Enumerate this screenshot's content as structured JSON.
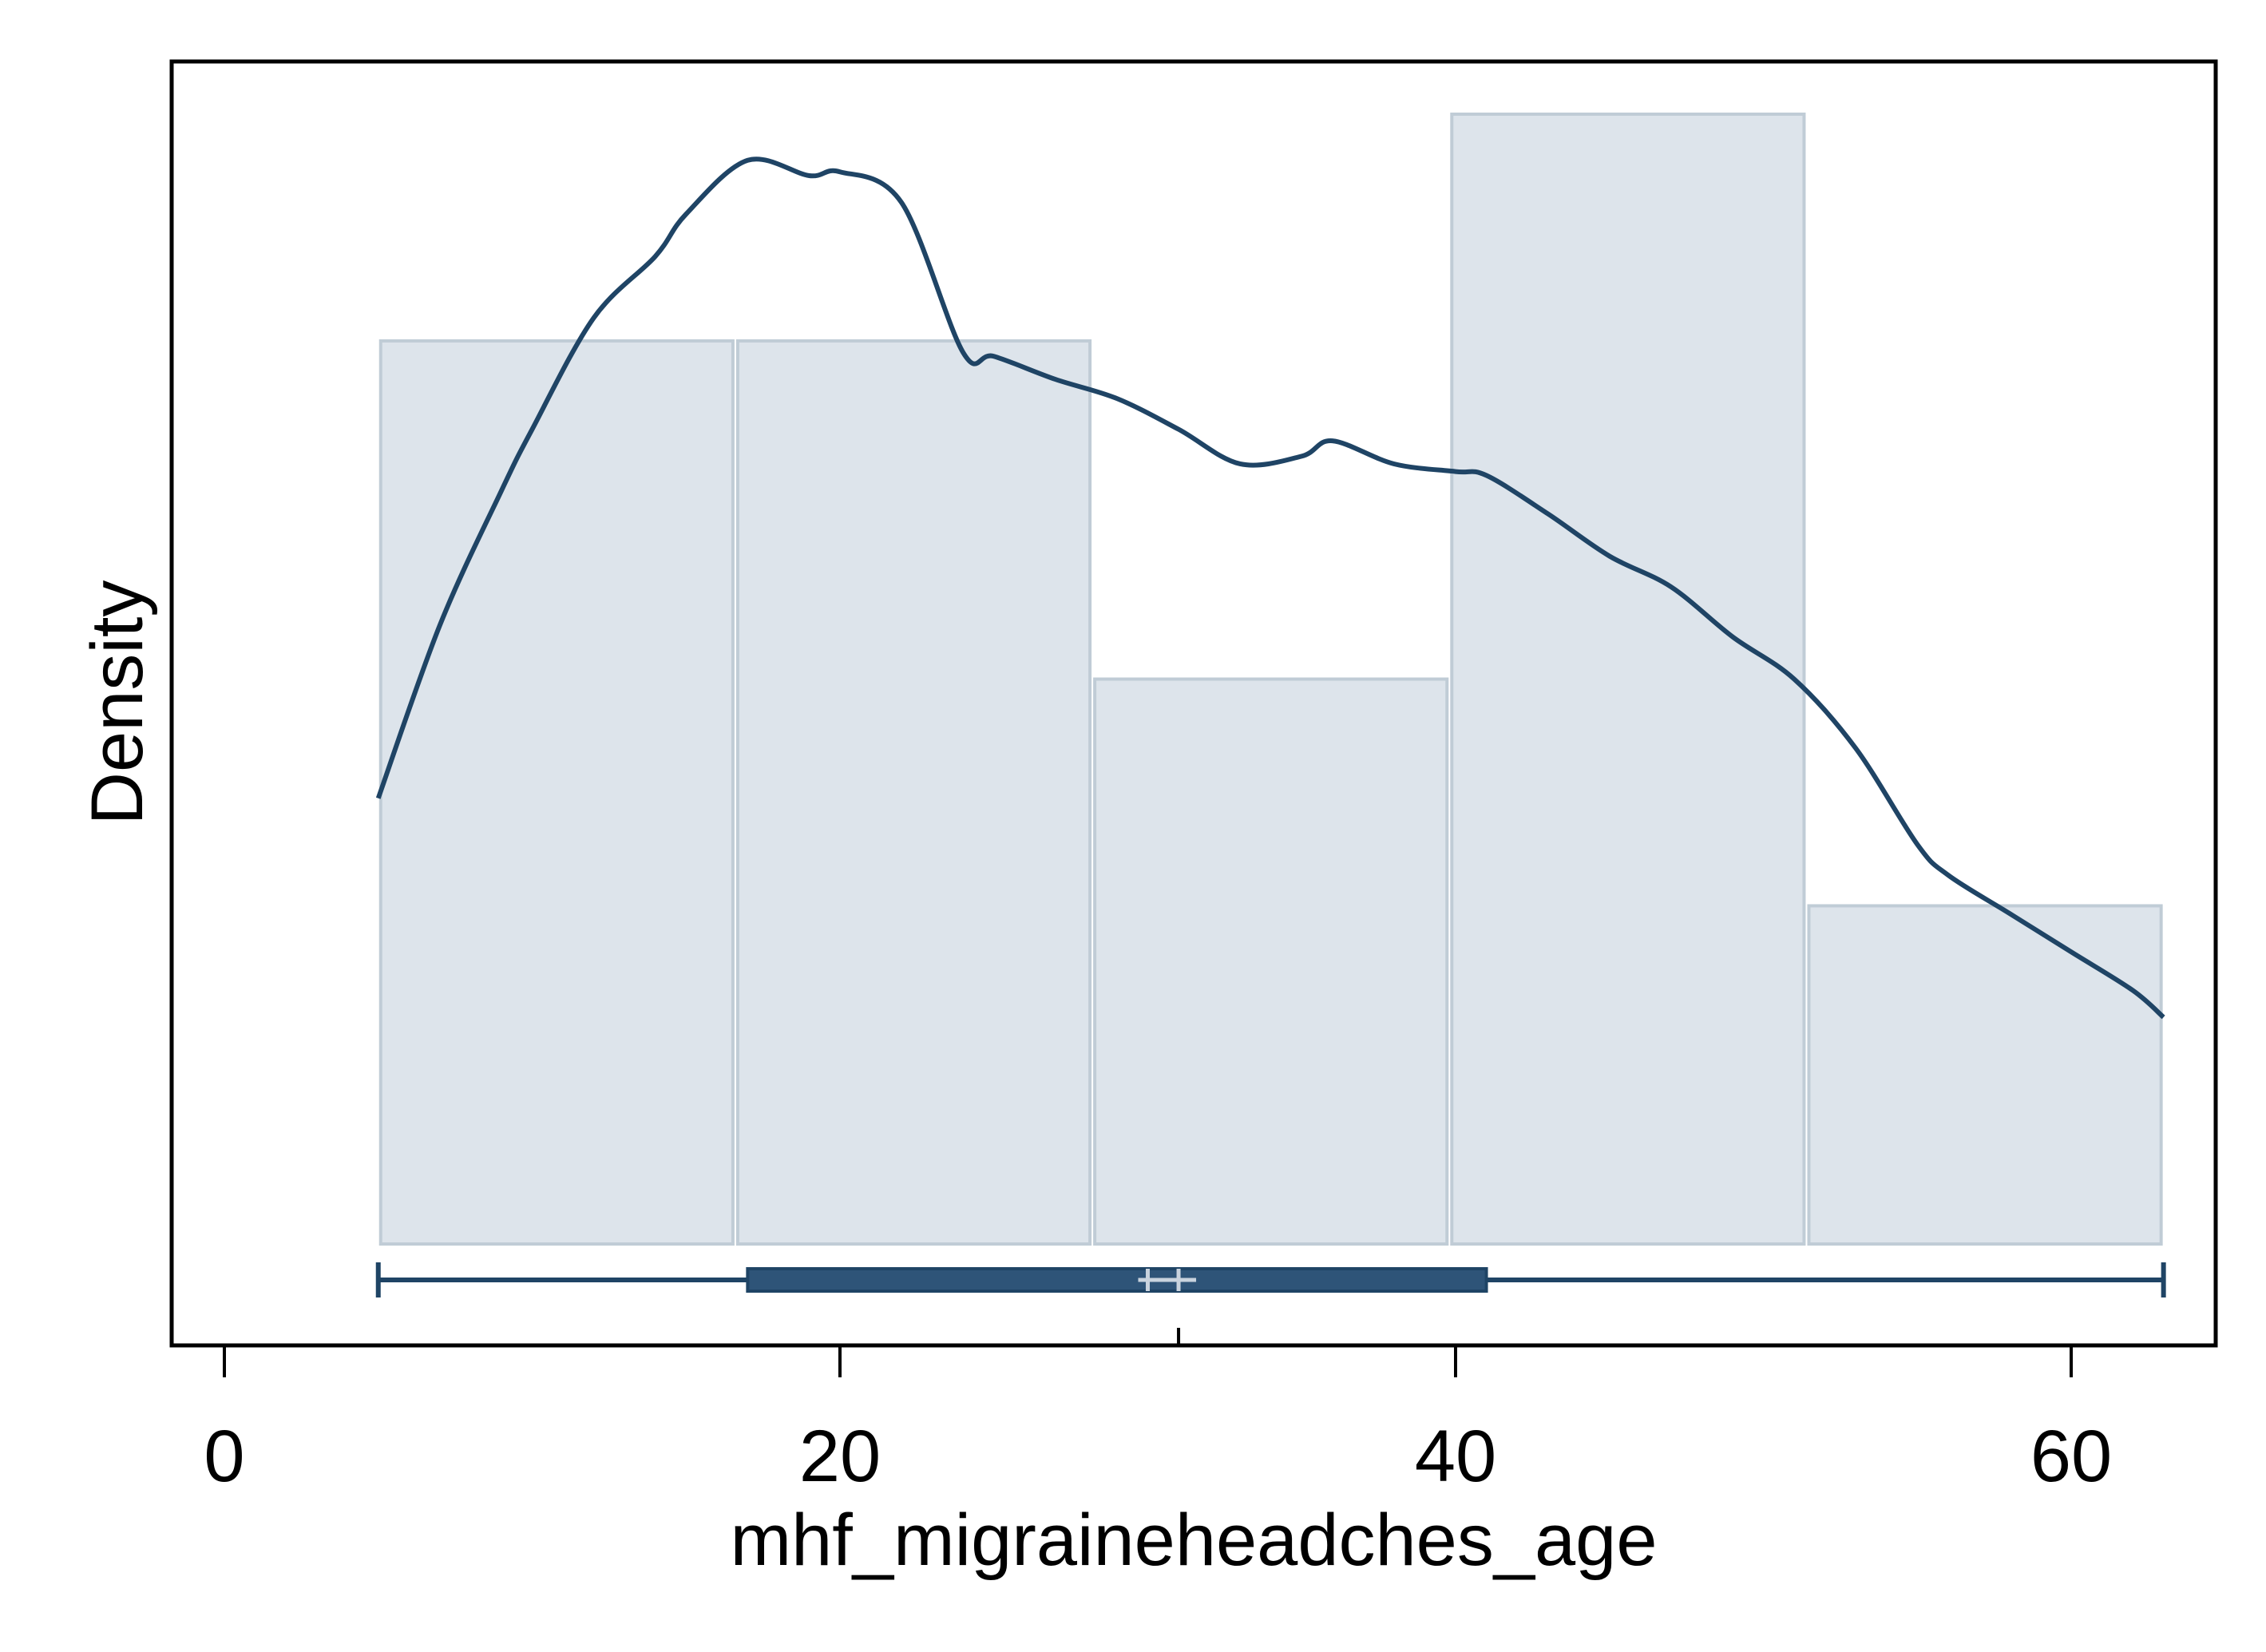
{
  "chart_data": {
    "type": "histogram",
    "xlabel": "mhf_migraineheadches_age",
    "ylabel": "Density",
    "xlim": [
      -8.5,
      82
    ],
    "x_ticks": [
      0,
      20,
      40,
      60
    ],
    "x_tick_labels": [
      "0",
      "20",
      "40",
      "60"
    ],
    "y_ticks_shown": false,
    "grid": false,
    "legend": "none",
    "bins": [
      {
        "x0": 5,
        "x1": 16.6,
        "density": 0.0235
      },
      {
        "x0": 16.6,
        "x1": 28.2,
        "density": 0.0235
      },
      {
        "x0": 28.2,
        "x1": 39.8,
        "density": 0.0147
      },
      {
        "x0": 39.8,
        "x1": 51.4,
        "density": 0.0294
      },
      {
        "x0": 51.4,
        "x1": 63,
        "density": 0.0088
      }
    ],
    "kde": {
      "x": [
        5,
        7,
        9,
        10,
        12,
        14,
        15,
        17,
        19,
        20,
        22,
        24,
        25,
        27,
        29,
        31,
        33,
        35,
        36,
        38,
        40,
        41,
        43,
        45,
        47,
        49,
        51,
        53,
        55,
        56,
        58,
        60,
        62,
        63
      ],
      "y": [
        0.0116,
        0.0161,
        0.0196,
        0.0212,
        0.0241,
        0.0257,
        0.0268,
        0.0282,
        0.0278,
        0.0279,
        0.0271,
        0.0232,
        0.0231,
        0.0225,
        0.022,
        0.0212,
        0.0203,
        0.0205,
        0.0209,
        0.0203,
        0.0201,
        0.02,
        0.019,
        0.0179,
        0.0171,
        0.0158,
        0.0147,
        0.0129,
        0.0104,
        0.0096,
        0.0086,
        0.0076,
        0.0066,
        0.0059
      ]
    },
    "boxplot": {
      "min": 5,
      "q1": 17,
      "median": 30,
      "mean": 31,
      "q3": 41,
      "max": 63
    },
    "colors": {
      "bar_fill": "#dde4eb",
      "bar_edge": "#c0ccd6",
      "line": "#1f4465",
      "box_fill": "#2e5478",
      "box_mark": "#c9d3de",
      "frame": "#000000"
    }
  }
}
